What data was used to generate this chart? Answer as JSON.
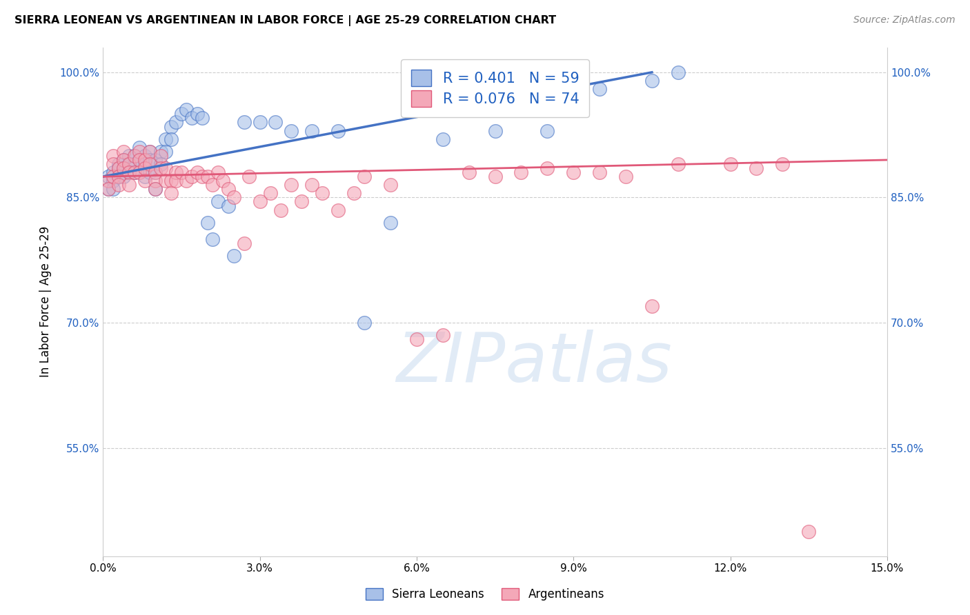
{
  "title": "SIERRA LEONEAN VS ARGENTINEAN IN LABOR FORCE | AGE 25-29 CORRELATION CHART",
  "source": "Source: ZipAtlas.com",
  "ylabel": "In Labor Force | Age 25-29",
  "xlim": [
    0.0,
    0.15
  ],
  "ylim": [
    0.42,
    1.03
  ],
  "xticks": [
    0.0,
    0.03,
    0.06,
    0.09,
    0.12,
    0.15
  ],
  "yticks": [
    0.55,
    0.7,
    0.85,
    1.0
  ],
  "ytick_labels": [
    "55.0%",
    "70.0%",
    "85.0%",
    "100.0%"
  ],
  "xtick_labels": [
    "0.0%",
    "3.0%",
    "6.0%",
    "9.0%",
    "12.0%",
    "15.0%"
  ],
  "blue_R": 0.401,
  "blue_N": 59,
  "pink_R": 0.076,
  "pink_N": 74,
  "blue_color": "#a8c0e8",
  "pink_color": "#f4a8b8",
  "line_blue_color": "#4472c4",
  "line_pink_color": "#e05878",
  "legend_label_blue": "Sierra Leoneans",
  "legend_label_pink": "Argentineans",
  "watermark": "ZIPatlas",
  "blue_x": [
    0.001,
    0.001,
    0.002,
    0.002,
    0.002,
    0.003,
    0.003,
    0.003,
    0.004,
    0.004,
    0.004,
    0.005,
    0.005,
    0.005,
    0.006,
    0.006,
    0.006,
    0.007,
    0.007,
    0.008,
    0.008,
    0.008,
    0.009,
    0.009,
    0.009,
    0.01,
    0.01,
    0.01,
    0.011,
    0.011,
    0.012,
    0.012,
    0.013,
    0.013,
    0.014,
    0.015,
    0.016,
    0.017,
    0.018,
    0.019,
    0.02,
    0.021,
    0.022,
    0.024,
    0.025,
    0.027,
    0.03,
    0.033,
    0.036,
    0.04,
    0.045,
    0.05,
    0.055,
    0.065,
    0.075,
    0.085,
    0.095,
    0.105,
    0.11
  ],
  "blue_y": [
    0.875,
    0.86,
    0.88,
    0.87,
    0.86,
    0.89,
    0.885,
    0.875,
    0.895,
    0.885,
    0.875,
    0.9,
    0.89,
    0.88,
    0.9,
    0.89,
    0.88,
    0.91,
    0.895,
    0.9,
    0.89,
    0.875,
    0.905,
    0.895,
    0.88,
    0.895,
    0.88,
    0.86,
    0.905,
    0.89,
    0.92,
    0.905,
    0.935,
    0.92,
    0.94,
    0.95,
    0.955,
    0.945,
    0.95,
    0.945,
    0.82,
    0.8,
    0.845,
    0.84,
    0.78,
    0.94,
    0.94,
    0.94,
    0.93,
    0.93,
    0.93,
    0.7,
    0.82,
    0.92,
    0.93,
    0.93,
    0.98,
    0.99,
    1.0
  ],
  "pink_x": [
    0.001,
    0.001,
    0.002,
    0.002,
    0.002,
    0.003,
    0.003,
    0.003,
    0.004,
    0.004,
    0.004,
    0.005,
    0.005,
    0.005,
    0.006,
    0.006,
    0.007,
    0.007,
    0.007,
    0.008,
    0.008,
    0.008,
    0.009,
    0.009,
    0.01,
    0.01,
    0.01,
    0.011,
    0.011,
    0.012,
    0.012,
    0.013,
    0.013,
    0.014,
    0.014,
    0.015,
    0.016,
    0.017,
    0.018,
    0.019,
    0.02,
    0.021,
    0.022,
    0.023,
    0.024,
    0.025,
    0.027,
    0.028,
    0.03,
    0.032,
    0.034,
    0.036,
    0.038,
    0.04,
    0.042,
    0.045,
    0.048,
    0.05,
    0.055,
    0.06,
    0.065,
    0.07,
    0.075,
    0.08,
    0.085,
    0.09,
    0.095,
    0.1,
    0.105,
    0.11,
    0.12,
    0.125,
    0.13,
    0.135
  ],
  "pink_y": [
    0.87,
    0.86,
    0.9,
    0.89,
    0.875,
    0.885,
    0.875,
    0.865,
    0.905,
    0.895,
    0.885,
    0.89,
    0.88,
    0.865,
    0.9,
    0.88,
    0.905,
    0.895,
    0.88,
    0.895,
    0.885,
    0.87,
    0.905,
    0.89,
    0.88,
    0.87,
    0.86,
    0.9,
    0.885,
    0.885,
    0.87,
    0.87,
    0.855,
    0.88,
    0.87,
    0.88,
    0.87,
    0.875,
    0.88,
    0.875,
    0.875,
    0.865,
    0.88,
    0.87,
    0.86,
    0.85,
    0.795,
    0.875,
    0.845,
    0.855,
    0.835,
    0.865,
    0.845,
    0.865,
    0.855,
    0.835,
    0.855,
    0.875,
    0.865,
    0.68,
    0.685,
    0.88,
    0.875,
    0.88,
    0.885,
    0.88,
    0.88,
    0.875,
    0.72,
    0.89,
    0.89,
    0.885,
    0.89,
    0.45
  ]
}
